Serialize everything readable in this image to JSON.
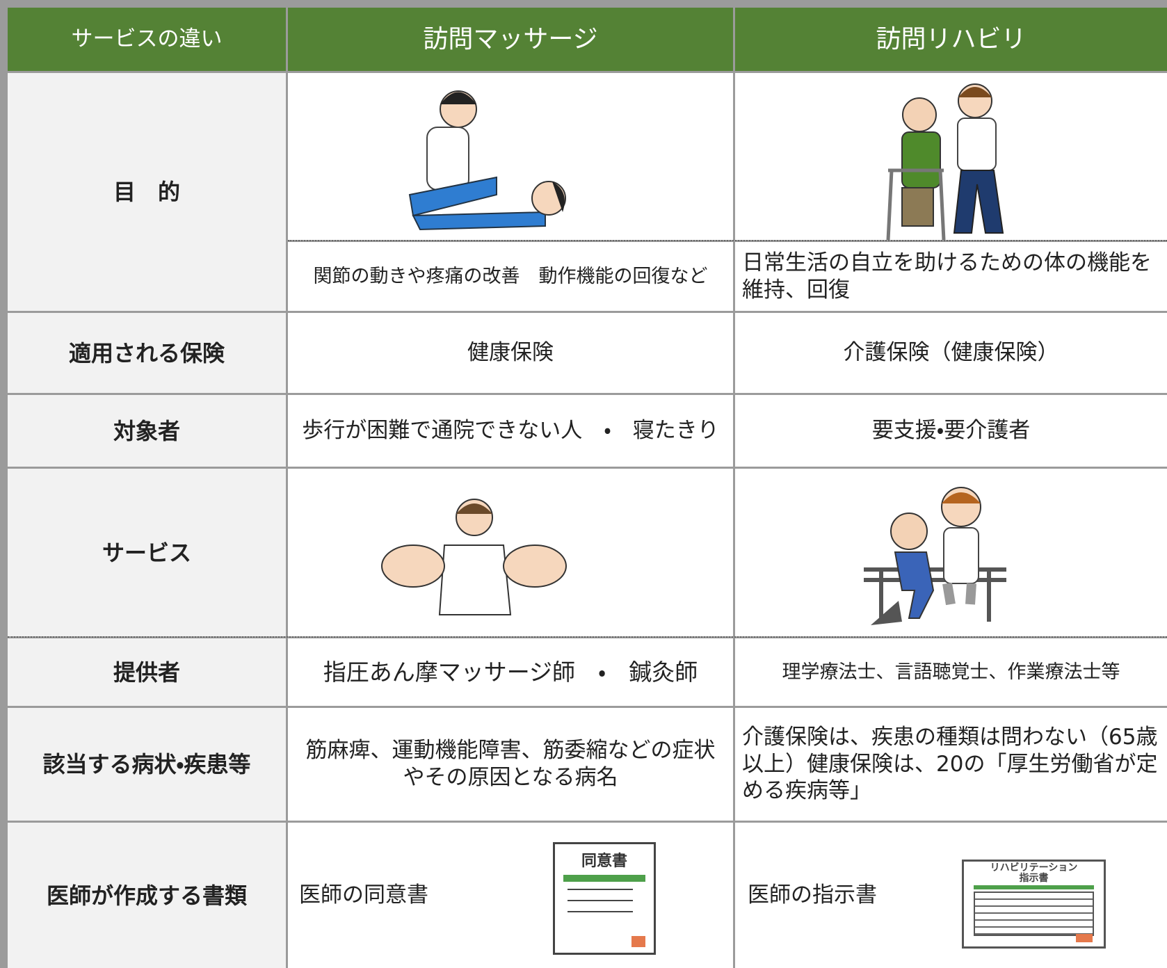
{
  "header": {
    "cells": [
      "サービスの違い",
      "訪問マッサージ",
      "訪問リハビリ"
    ]
  },
  "rows": [
    {
      "label": "目　的",
      "massage": "関節の動きや疼痛の改善　動作機能の回復など",
      "rehab": "日常生活の自立を助けるための体の機能を維持、回復"
    },
    {
      "label": "適用される保険",
      "massage": "健康保険",
      "rehab": "介護保険（健康保険）"
    },
    {
      "label": "対象者",
      "massage": "歩行が困難で通院できない人　・　寝たきり",
      "rehab": "要支援・要介護者"
    },
    {
      "label": "サービス"
    },
    {
      "label": "提供者",
      "massage": "指圧あん摩マッサージ師　・　鍼灸師",
      "rehab": "理学療法士、言語聴覚士、作業療法士等"
    },
    {
      "label": "該当する病状・疾患等",
      "massage": "筋麻痺、運動機能障害、筋委縮などの症状やその原因となる病名",
      "rehab": "介護保険は、疾患の種類は問わない（65歳以上）健康保険は、20の「厚生労働省が定める疾病等」"
    },
    {
      "label": "医師が作成する書類",
      "massage": "医師の同意書",
      "rehab": "医師の指示書"
    }
  ],
  "documents": {
    "massage_doc": [
      "同意書"
    ],
    "rehab_doc": [
      "リハビリテーション",
      "指示書"
    ]
  }
}
